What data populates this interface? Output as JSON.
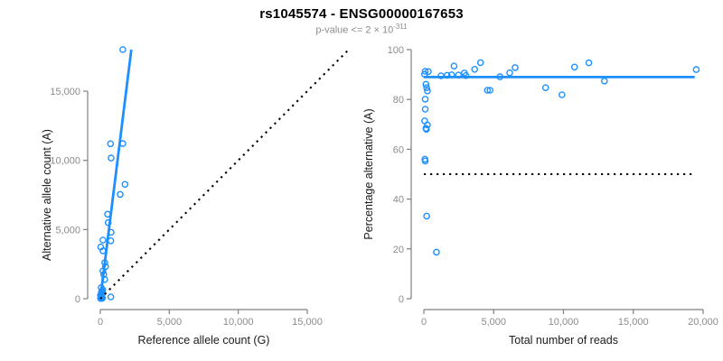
{
  "header": {
    "title": "rs1045574 - ENSG00000167653",
    "subtitle_prefix": "p-value <= 2 × 10",
    "subtitle_exponent": "-311"
  },
  "colors": {
    "point_blue": "#1E90FF",
    "line_blue": "#1E8FFF",
    "dotted_black": "#000000",
    "axis_gray": "#808080",
    "tick_label_gray": "#8c8c8c",
    "axis_label_dark": "#1a1a1a"
  },
  "chart_data": [
    {
      "type": "scatter",
      "panel": "left",
      "xlabel": "Reference allele count (G)",
      "ylabel": "Alternative allele count (A)",
      "xlim": [
        0,
        18000
      ],
      "ylim": [
        0,
        18500
      ],
      "xticks": [
        0,
        5000,
        10000,
        15000
      ],
      "xtick_labels": [
        "0",
        "5,000",
        "10,000",
        "15,000"
      ],
      "yticks": [
        0,
        5000,
        10000,
        15000
      ],
      "ytick_labels": [
        "0",
        "5,000",
        "10,000",
        "15,000"
      ],
      "grid": false,
      "points": [
        [
          1630,
          18000
        ],
        [
          740,
          11200
        ],
        [
          1630,
          11210
        ],
        [
          780,
          10170
        ],
        [
          1790,
          8260
        ],
        [
          1440,
          7540
        ],
        [
          525,
          6110
        ],
        [
          570,
          5500
        ],
        [
          780,
          4800
        ],
        [
          190,
          4240
        ],
        [
          760,
          4190
        ],
        [
          30,
          3740
        ],
        [
          190,
          3460
        ],
        [
          320,
          2610
        ],
        [
          380,
          2330
        ],
        [
          190,
          2000
        ],
        [
          250,
          1740
        ],
        [
          320,
          1390
        ],
        [
          60,
          800
        ],
        [
          130,
          520
        ],
        [
          10,
          240
        ],
        [
          130,
          85
        ],
        [
          760,
          130
        ],
        [
          40,
          60
        ],
        [
          110,
          150
        ],
        [
          60,
          350
        ],
        [
          150,
          30
        ],
        [
          90,
          500
        ],
        [
          30,
          120
        ],
        [
          180,
          640
        ],
        [
          20,
          20
        ],
        [
          70,
          250
        ],
        [
          100,
          420
        ],
        [
          50,
          180
        ],
        [
          120,
          310
        ],
        [
          90,
          90
        ]
      ],
      "lines": [
        {
          "name": "regression-line",
          "x1": 0,
          "y1": 0,
          "x2": 2250,
          "y2": 18000,
          "style": "solid",
          "color": "blue"
        },
        {
          "name": "identity-line",
          "x1": 0,
          "y1": 0,
          "x2": 18000,
          "y2": 18000,
          "style": "dotted",
          "color": "black"
        }
      ]
    },
    {
      "type": "scatter",
      "panel": "right",
      "xlabel": "Total number of reads",
      "ylabel": "Percentage alternative (A)",
      "xlim": [
        0,
        20000
      ],
      "ylim": [
        0,
        100
      ],
      "xticks": [
        0,
        5000,
        10000,
        15000,
        20000
      ],
      "xtick_labels": [
        "0",
        "5,000",
        "10,000",
        "15,000",
        "20,000"
      ],
      "yticks": [
        0,
        20,
        40,
        60,
        80,
        100
      ],
      "ytick_labels": [
        "0",
        "20",
        "40",
        "60",
        "80",
        "100"
      ],
      "grid": false,
      "points": [
        [
          50,
          90.1
        ],
        [
          100,
          91.3
        ],
        [
          320,
          91.2
        ],
        [
          150,
          86.1
        ],
        [
          200,
          84.7
        ],
        [
          250,
          83.4
        ],
        [
          100,
          80.1
        ],
        [
          100,
          76.1
        ],
        [
          60,
          71.4
        ],
        [
          250,
          69.8
        ],
        [
          150,
          68.4
        ],
        [
          180,
          68.0
        ],
        [
          80,
          56.0
        ],
        [
          100,
          55.3
        ],
        [
          200,
          33.2
        ],
        [
          900,
          18.7
        ],
        [
          1230,
          89.5
        ],
        [
          1670,
          89.7
        ],
        [
          1990,
          89.9
        ],
        [
          2160,
          93.4
        ],
        [
          2480,
          89.8
        ],
        [
          2900,
          90.6
        ],
        [
          3010,
          89.6
        ],
        [
          3640,
          92.1
        ],
        [
          4060,
          94.8
        ],
        [
          4550,
          83.7
        ],
        [
          4740,
          83.7
        ],
        [
          5450,
          89.1
        ],
        [
          6150,
          90.7
        ],
        [
          6540,
          92.8
        ],
        [
          8720,
          84.7
        ],
        [
          9890,
          81.9
        ],
        [
          10790,
          93.0
        ],
        [
          11820,
          94.7
        ],
        [
          12930,
          87.4
        ],
        [
          19510,
          92.0
        ]
      ],
      "lines": [
        {
          "name": "fit-line",
          "x1": 0,
          "y1": 89,
          "x2": 19400,
          "y2": 89,
          "style": "solid",
          "color": "blue"
        },
        {
          "name": "fifty-percent-line",
          "x1": 0,
          "y1": 50,
          "x2": 19300,
          "y2": 50,
          "style": "dotted",
          "color": "black"
        }
      ]
    }
  ]
}
